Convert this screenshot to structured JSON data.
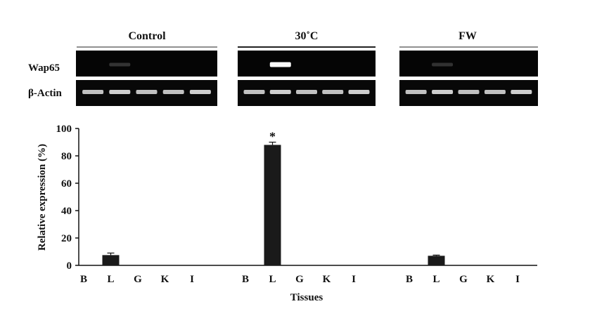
{
  "gel": {
    "groups": [
      {
        "label": "Control"
      },
      {
        "label": "30˚C"
      },
      {
        "label": "FW"
      }
    ],
    "row_labels": [
      "Wap65",
      "β-Actin"
    ],
    "wap65_band_intensity": [
      [
        0,
        0.12,
        0,
        0,
        0
      ],
      [
        0,
        1.0,
        0,
        0,
        0
      ],
      [
        0,
        0.1,
        0,
        0,
        0
      ]
    ],
    "actin_band_intensity": [
      [
        0.8,
        0.85,
        0.8,
        0.8,
        0.85
      ],
      [
        0.8,
        0.85,
        0.8,
        0.8,
        0.85
      ],
      [
        0.8,
        0.85,
        0.8,
        0.8,
        0.85
      ]
    ]
  },
  "chart_data": {
    "type": "bar",
    "groups": [
      "Control",
      "30˚C",
      "FW"
    ],
    "categories": [
      "B",
      "L",
      "G",
      "K",
      "I"
    ],
    "series": [
      {
        "group": "Control",
        "values": [
          0,
          7.5,
          0,
          0,
          0
        ],
        "errors": [
          0,
          1.5,
          0,
          0,
          0
        ]
      },
      {
        "group": "30˚C",
        "values": [
          0,
          88,
          0,
          0,
          0
        ],
        "errors": [
          0,
          2,
          0,
          0,
          0
        ]
      },
      {
        "group": "FW",
        "values": [
          0,
          7,
          0,
          0,
          0
        ],
        "errors": [
          0,
          0.5,
          0,
          0,
          0
        ]
      }
    ],
    "annotations": [
      {
        "group": "30˚C",
        "category": "L",
        "text": "*"
      }
    ],
    "xlabel": "Tissues",
    "ylabel": "Relative expression (%)",
    "ylim": [
      0,
      100
    ],
    "yticks": [
      0,
      20,
      40,
      60,
      80,
      100
    ],
    "grid": false,
    "bar_color": "#1a1a1a"
  }
}
